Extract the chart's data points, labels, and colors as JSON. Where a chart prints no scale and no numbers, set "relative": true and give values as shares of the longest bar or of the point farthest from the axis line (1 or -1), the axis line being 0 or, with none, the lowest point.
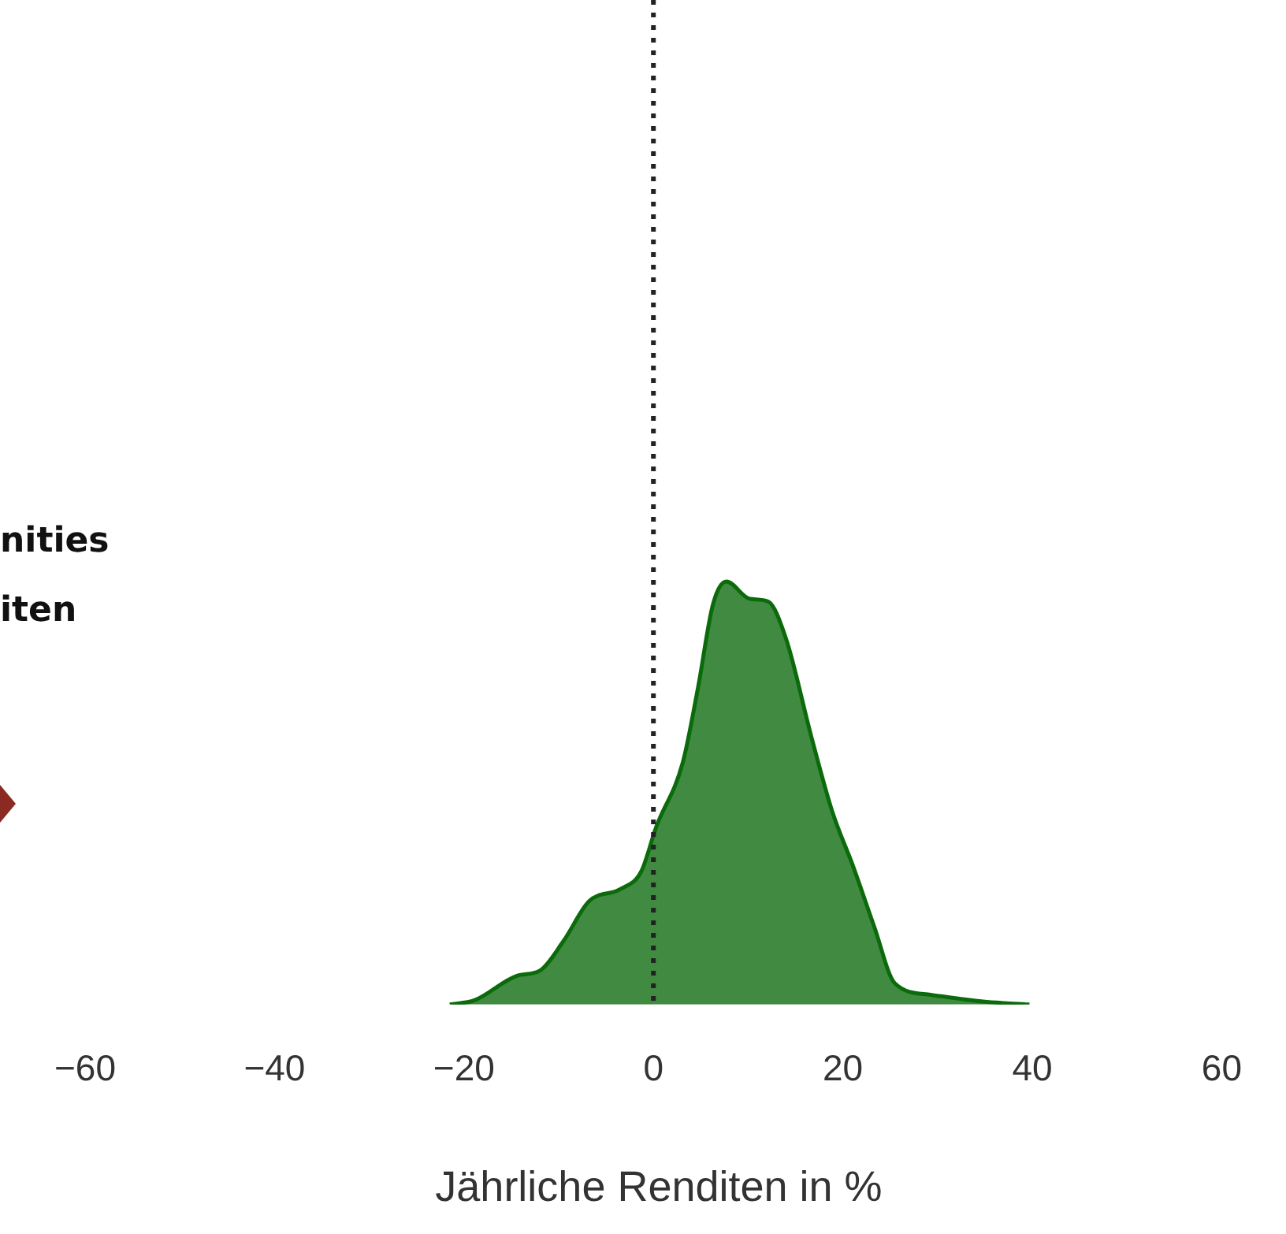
{
  "chart_data": {
    "type": "area",
    "relative": true,
    "xlabel": "Jährliche Renditen in %",
    "xlim": [
      -60,
      60
    ],
    "xticks": [
      {
        "value": -60,
        "label": "−60"
      },
      {
        "value": -40,
        "label": "−40"
      },
      {
        "value": -20,
        "label": "−20"
      },
      0,
      20,
      40,
      60
    ],
    "grid": false,
    "legend": false,
    "annotations": [
      "nities",
      "iten"
    ],
    "ref_lines": [
      {
        "axis": "x",
        "value": 0,
        "color": "#222222",
        "line_style": "dotted"
      }
    ],
    "series": [
      {
        "color": "#418a41",
        "x": [
          -21.5,
          -18.9,
          -14.4,
          -12.0,
          -9.5,
          -6.8,
          -3.5,
          -1.3,
          0.3,
          3.1,
          4.7,
          6.3,
          7.7,
          10.2,
          12.1,
          14.0,
          16.7,
          18.9,
          21.1,
          23.3,
          25.5,
          29.3,
          34.8,
          39.7
        ],
        "values": [
          0,
          0.01,
          0.068,
          0.08,
          0.15,
          0.244,
          0.273,
          0.314,
          0.42,
          0.572,
          0.748,
          0.947,
          1,
          0.959,
          0.953,
          0.865,
          0.631,
          0.455,
          0.326,
          0.185,
          0.05,
          0.023,
          0.007,
          0
        ]
      }
    ]
  }
}
